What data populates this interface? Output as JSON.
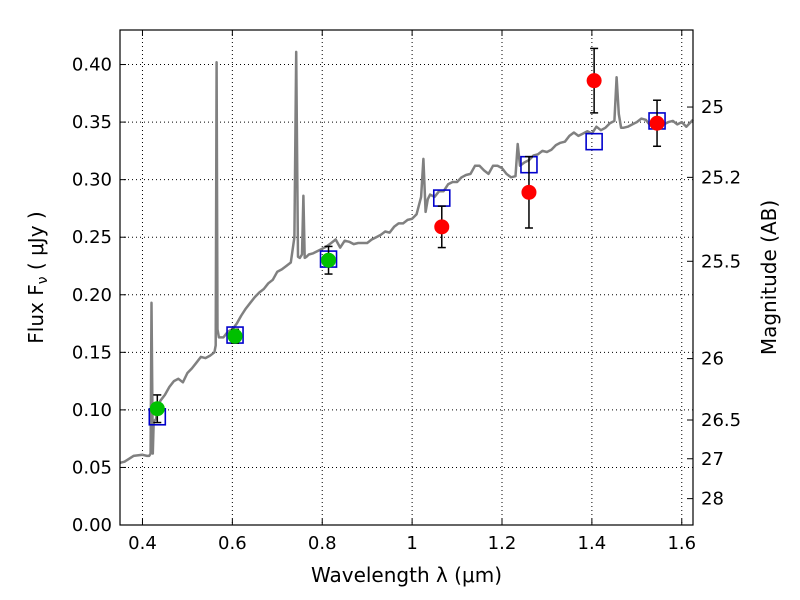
{
  "chart_data": {
    "type": "scatter",
    "xlabel": "Wavelength  λ (μm)",
    "ylabel": "Flux  F",
    "ylabel_sub": "ν",
    "ylabel_unit": "  ( μJy )",
    "y2label": "Magnitude (AB)",
    "xlim": [
      0.35,
      1.625
    ],
    "ylim": [
      0.0,
      0.43
    ],
    "x_ticks": [
      0.4,
      0.6,
      0.8,
      1.0,
      1.2,
      1.4,
      1.6
    ],
    "x_tick_labels": [
      "0.4",
      "0.6",
      "0.8",
      "1",
      "1.2",
      "1.4",
      "1.6"
    ],
    "y_ticks": [
      0.0,
      0.05,
      0.1,
      0.15,
      0.2,
      0.25,
      0.3,
      0.35,
      0.4
    ],
    "y_tick_labels": [
      "0.00",
      "0.05",
      "0.10",
      "0.15",
      "0.20",
      "0.25",
      "0.30",
      "0.35",
      "0.40"
    ],
    "y2_ticks": [
      {
        "mag": 25,
        "label": "25"
      },
      {
        "mag": 25.2,
        "label": "25.2"
      },
      {
        "mag": 25.5,
        "label": "25.5"
      },
      {
        "mag": 26,
        "label": "26"
      },
      {
        "mag": 26.5,
        "label": "26.5"
      },
      {
        "mag": 27,
        "label": "27"
      },
      {
        "mag": 28,
        "label": "28"
      }
    ],
    "grid": true,
    "series": [
      {
        "kind": "line",
        "color": "#808080",
        "x": [
          0.35,
          0.36,
          0.38,
          0.4,
          0.41,
          0.415,
          0.418,
          0.42,
          0.423,
          0.425,
          0.43,
          0.435,
          0.44,
          0.45,
          0.46,
          0.47,
          0.48,
          0.49,
          0.5,
          0.51,
          0.52,
          0.53,
          0.54,
          0.55,
          0.56,
          0.563,
          0.565,
          0.567,
          0.57,
          0.58,
          0.59,
          0.6,
          0.61,
          0.62,
          0.63,
          0.64,
          0.65,
          0.66,
          0.67,
          0.68,
          0.69,
          0.7,
          0.71,
          0.72,
          0.73,
          0.738,
          0.742,
          0.746,
          0.75,
          0.755,
          0.758,
          0.761,
          0.765,
          0.77,
          0.78,
          0.79,
          0.8,
          0.81,
          0.82,
          0.83,
          0.84,
          0.85,
          0.86,
          0.87,
          0.88,
          0.89,
          0.9,
          0.91,
          0.92,
          0.93,
          0.94,
          0.95,
          0.96,
          0.97,
          0.98,
          0.99,
          1.0,
          1.01,
          1.02,
          1.025,
          1.03,
          1.035,
          1.04,
          1.05,
          1.06,
          1.07,
          1.08,
          1.09,
          1.1,
          1.11,
          1.12,
          1.13,
          1.14,
          1.15,
          1.16,
          1.17,
          1.18,
          1.19,
          1.2,
          1.21,
          1.22,
          1.23,
          1.235,
          1.24,
          1.25,
          1.26,
          1.27,
          1.28,
          1.29,
          1.3,
          1.31,
          1.32,
          1.33,
          1.34,
          1.35,
          1.36,
          1.37,
          1.38,
          1.39,
          1.4,
          1.41,
          1.42,
          1.43,
          1.44,
          1.45,
          1.455,
          1.46,
          1.465,
          1.47,
          1.48,
          1.49,
          1.5,
          1.51,
          1.52,
          1.53,
          1.54,
          1.55,
          1.56,
          1.57,
          1.58,
          1.59,
          1.6,
          1.61,
          1.625
        ],
        "y": [
          0.054,
          0.055,
          0.06,
          0.061,
          0.06,
          0.06,
          0.062,
          0.193,
          0.062,
          0.09,
          0.092,
          0.103,
          0.108,
          0.113,
          0.12,
          0.125,
          0.127,
          0.124,
          0.132,
          0.136,
          0.141,
          0.146,
          0.145,
          0.147,
          0.15,
          0.156,
          0.402,
          0.17,
          0.163,
          0.163,
          0.168,
          0.17,
          0.175,
          0.182,
          0.188,
          0.193,
          0.198,
          0.202,
          0.205,
          0.21,
          0.213,
          0.22,
          0.222,
          0.225,
          0.228,
          0.25,
          0.411,
          0.233,
          0.232,
          0.235,
          0.286,
          0.232,
          0.233,
          0.235,
          0.236,
          0.238,
          0.24,
          0.242,
          0.245,
          0.248,
          0.241,
          0.247,
          0.246,
          0.244,
          0.245,
          0.245,
          0.245,
          0.248,
          0.25,
          0.252,
          0.255,
          0.254,
          0.259,
          0.262,
          0.262,
          0.265,
          0.266,
          0.27,
          0.285,
          0.318,
          0.272,
          0.283,
          0.287,
          0.285,
          0.29,
          0.29,
          0.296,
          0.298,
          0.298,
          0.302,
          0.304,
          0.305,
          0.312,
          0.312,
          0.308,
          0.305,
          0.312,
          0.312,
          0.31,
          0.305,
          0.302,
          0.303,
          0.331,
          0.312,
          0.315,
          0.317,
          0.321,
          0.322,
          0.325,
          0.324,
          0.326,
          0.33,
          0.332,
          0.333,
          0.338,
          0.341,
          0.338,
          0.34,
          0.342,
          0.34,
          0.346,
          0.343,
          0.345,
          0.349,
          0.351,
          0.389,
          0.357,
          0.345,
          0.345,
          0.346,
          0.348,
          0.35,
          0.353,
          0.352,
          0.347,
          0.348,
          0.346,
          0.348,
          0.35,
          0.351,
          0.348,
          0.35,
          0.346,
          0.352
        ]
      },
      {
        "kind": "square-markers",
        "color": "#0000cc",
        "x": [
          0.433,
          0.606,
          0.814,
          1.066,
          1.26,
          1.405,
          1.545
        ],
        "y": [
          0.094,
          0.165,
          0.231,
          0.284,
          0.313,
          0.333,
          0.351
        ]
      },
      {
        "kind": "circle-markers",
        "color": "#00c000",
        "x": [
          0.433,
          0.606,
          0.814
        ],
        "y": [
          0.101,
          0.164,
          0.23
        ],
        "yerr": [
          0.012,
          0.006,
          0.012
        ]
      },
      {
        "kind": "circle-markers",
        "color": "#ff0000",
        "x": [
          1.066,
          1.26,
          1.405,
          1.545
        ],
        "y": [
          0.259,
          0.289,
          0.386,
          0.349
        ],
        "yerr": [
          0.018,
          0.031,
          0.028,
          0.02
        ]
      }
    ]
  }
}
